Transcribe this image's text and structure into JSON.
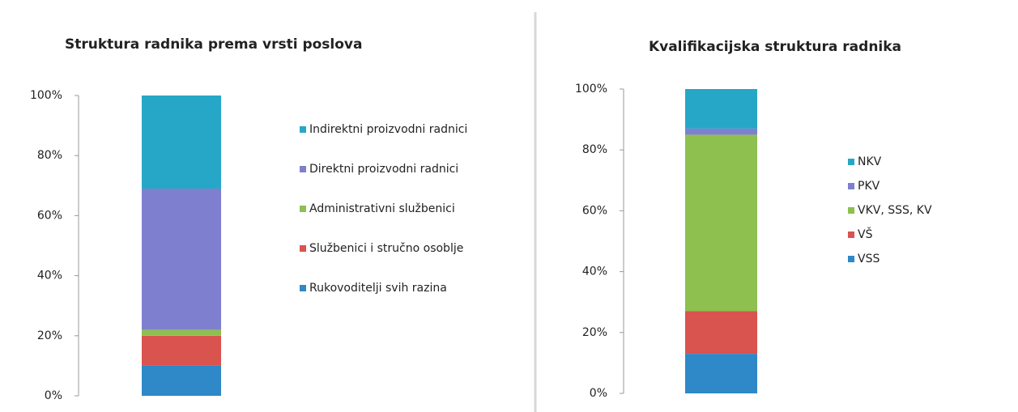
{
  "chart_data": [
    {
      "type": "bar",
      "stacked": true,
      "title": "Struktura radnika prema vrsti poslova",
      "ylim": [
        0,
        100
      ],
      "yticks": [
        {
          "value": 0,
          "label": "0%"
        },
        {
          "value": 20,
          "label": "20%"
        },
        {
          "value": 40,
          "label": "40%"
        },
        {
          "value": 60,
          "label": "60%"
        },
        {
          "value": 80,
          "label": "80%"
        },
        {
          "value": 100,
          "label": "100%"
        }
      ],
      "legend": "right",
      "series": [
        {
          "name": "Rukovoditelji svih razina",
          "color": "#2f88c8",
          "values": [
            10
          ]
        },
        {
          "name": "Službenici i stručno osoblje",
          "color": "#d9534f",
          "values": [
            10
          ]
        },
        {
          "name": "Administrativni službenici",
          "color": "#8dc04f",
          "values": [
            2
          ]
        },
        {
          "name": "Direktni proizvodni radnici",
          "color": "#7f7fcf",
          "values": [
            47
          ]
        },
        {
          "name": "Indirektni proizvodni radnici",
          "color": "#27a7c7",
          "values": [
            31
          ]
        }
      ]
    },
    {
      "type": "bar",
      "stacked": true,
      "title": "Kvalifikacijska struktura radnika",
      "ylim": [
        0,
        100
      ],
      "yticks": [
        {
          "value": 0,
          "label": "0%"
        },
        {
          "value": 20,
          "label": "20%"
        },
        {
          "value": 40,
          "label": "40%"
        },
        {
          "value": 60,
          "label": "60%"
        },
        {
          "value": 80,
          "label": "80%"
        },
        {
          "value": 100,
          "label": "100%"
        }
      ],
      "legend": "right",
      "series": [
        {
          "name": "VSS",
          "color": "#2f88c8",
          "values": [
            13
          ]
        },
        {
          "name": "VŠ",
          "color": "#d9534f",
          "values": [
            14
          ]
        },
        {
          "name": "VKV, SSS, KV",
          "color": "#8dc04f",
          "values": [
            58
          ]
        },
        {
          "name": "PKV",
          "color": "#7f7fcf",
          "values": [
            2
          ]
        },
        {
          "name": "NKV",
          "color": "#27a7c7",
          "values": [
            13
          ]
        }
      ]
    }
  ]
}
